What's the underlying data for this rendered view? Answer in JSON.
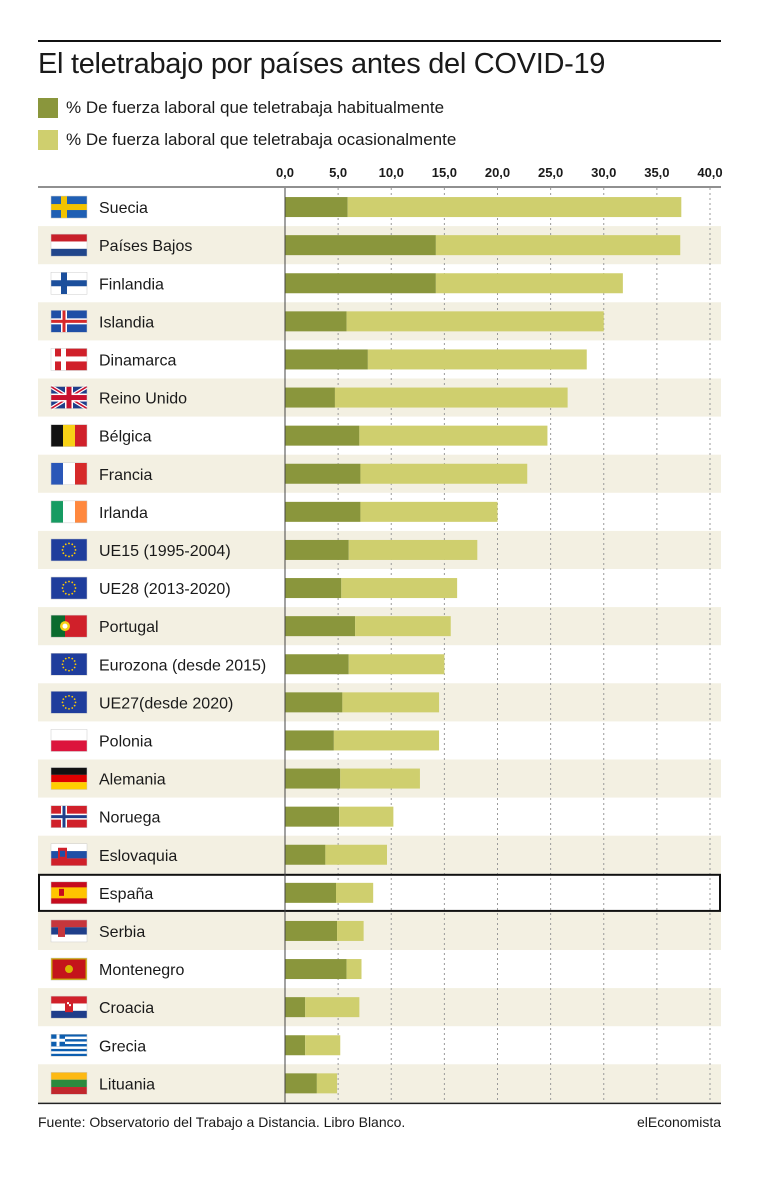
{
  "title": "El teletrabajo por países antes del COVID-19",
  "legend": [
    {
      "label": "% De fuerza laboral que teletrabaja habitualmente",
      "color": "#8a963c"
    },
    {
      "label": "% De fuerza laboral que teletrabaja ocasionalmente",
      "color": "#cfcf6e"
    }
  ],
  "footer": {
    "source": "Fuente: Observatorio del Trabajo a Distancia. Libro Blanco.",
    "brand": "elEconomista"
  },
  "colors": {
    "habitual": "#8a963c",
    "occasional": "#cfcf6e",
    "stripe": "#f3f0e2",
    "highlight_border": "#111111"
  },
  "highlight": "España",
  "chart_data": {
    "type": "bar",
    "orientation": "horizontal",
    "stacked": true,
    "xlim": [
      0,
      40
    ],
    "x_ticks": [
      "0,0",
      "5,0",
      "10,0",
      "15,0",
      "20,0",
      "25,0",
      "30,0",
      "35,0",
      "40,0"
    ],
    "grid": "vertical dotted",
    "categories": [
      "Suecia",
      "Países Bajos",
      "Finlandia",
      "Islandia",
      "Dinamarca",
      "Reino Unido",
      "Bélgica",
      "Francia",
      "Irlanda",
      "UE15 (1995-2004)",
      "UE28 (2013-2020)",
      "Portugal",
      "Eurozona (desde 2015)",
      "UE27(desde 2020)",
      "Polonia",
      "Alemania",
      "Noruega",
      "Eslovaquia",
      "España",
      "Serbia",
      "Montenegro",
      "Croacia",
      "Grecia",
      "Lituania"
    ],
    "flags": [
      "sweden-flag",
      "netherlands-flag",
      "finland-flag",
      "iceland-flag",
      "denmark-flag",
      "uk-flag",
      "belgium-flag",
      "france-flag",
      "ireland-flag",
      "eu-flag",
      "eu-flag",
      "portugal-flag",
      "eu-flag",
      "eu-flag",
      "poland-flag",
      "germany-flag",
      "norway-flag",
      "slovakia-flag",
      "spain-flag",
      "serbia-flag",
      "montenegro-flag",
      "croatia-flag",
      "greece-flag",
      "lithuania-flag"
    ],
    "series": [
      {
        "name": "% De fuerza laboral que teletrabaja habitualmente",
        "values": [
          5.9,
          14.2,
          14.2,
          5.8,
          7.8,
          4.7,
          7.0,
          7.1,
          7.1,
          6.0,
          5.3,
          6.6,
          6.0,
          5.4,
          4.6,
          5.2,
          5.1,
          3.8,
          4.8,
          4.9,
          5.8,
          1.9,
          1.9,
          3.0
        ]
      },
      {
        "name": "% De fuerza laboral que teletrabaja ocasionalmente",
        "values": [
          31.4,
          23.0,
          17.6,
          24.2,
          20.6,
          21.9,
          17.7,
          15.7,
          12.9,
          12.1,
          10.9,
          9.0,
          9.0,
          9.1,
          9.9,
          7.5,
          5.1,
          5.8,
          3.5,
          2.5,
          1.4,
          5.1,
          3.3,
          1.9
        ]
      }
    ]
  }
}
